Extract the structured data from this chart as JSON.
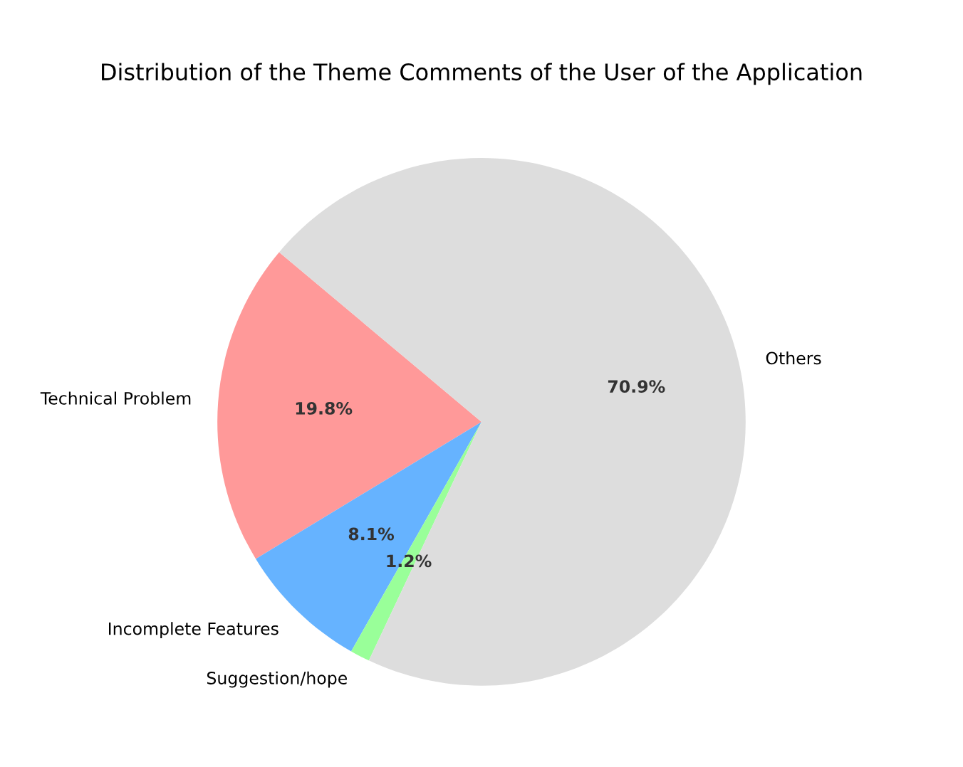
{
  "chart_data": {
    "type": "pie",
    "title": "Distribution of the Theme Comments of the User of the Application",
    "categories": [
      "Technical Problem",
      "Incomplete Features",
      "Suggestion/hope",
      "Others"
    ],
    "values": [
      19.8,
      8.1,
      1.2,
      70.9
    ],
    "colors": [
      "#ff9999",
      "#66b3ff",
      "#99ff99",
      "#dddddd"
    ],
    "value_labels": [
      "19.8%",
      "8.1%",
      "1.2%",
      "70.9%"
    ]
  }
}
